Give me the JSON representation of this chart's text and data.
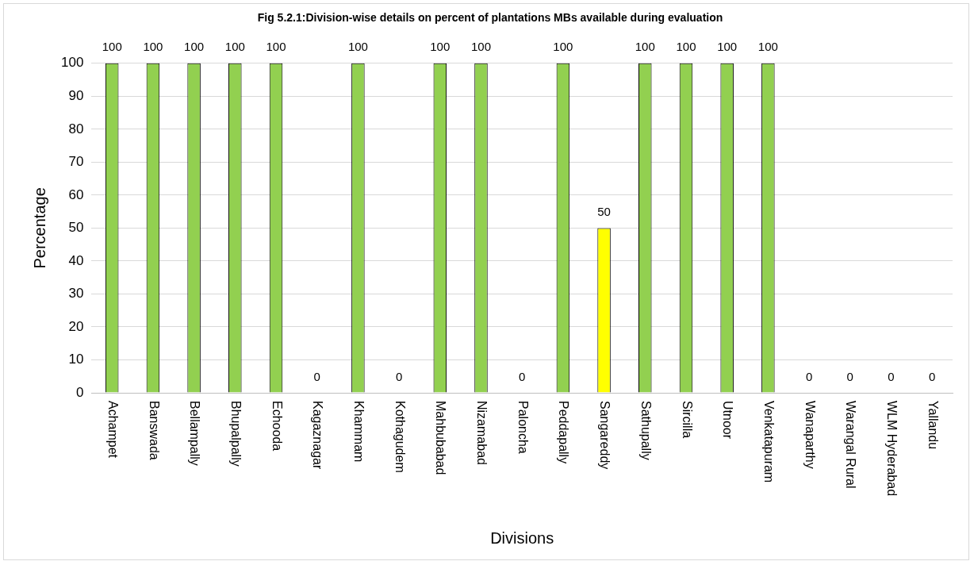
{
  "chart_data": {
    "type": "bar",
    "title": "Fig 5.2.1:Division-wise details on percent of plantations MBs available during evaluation",
    "xlabel": "Divisions",
    "ylabel": "Percentage",
    "categories": [
      "Achampet",
      "Banswada",
      "Bellampally",
      "Bhupalpally",
      "Echooda",
      "Kagaznagar",
      "Khammam",
      "Kothagudem",
      "Mahbubabad",
      "Nizamabad",
      "Paloncha",
      "Peddapally",
      "Sangareddy",
      "Sathupally",
      "Sircilla",
      "Utnoor",
      "Venkatapuram",
      "Wanaparthy",
      "Warangal Rural",
      "WLM Hyderabad",
      "Yallandu"
    ],
    "values": [
      100,
      100,
      100,
      100,
      100,
      0,
      100,
      0,
      100,
      100,
      0,
      100,
      50,
      100,
      100,
      100,
      100,
      0,
      0,
      0,
      0
    ],
    "colors": [
      "#92d050",
      "#92d050",
      "#92d050",
      "#92d050",
      "#92d050",
      "#92d050",
      "#92d050",
      "#92d050",
      "#92d050",
      "#92d050",
      "#92d050",
      "#92d050",
      "#ffff00",
      "#92d050",
      "#92d050",
      "#92d050",
      "#92d050",
      "#92d050",
      "#92d050",
      "#92d050",
      "#92d050"
    ],
    "ylim": [
      0,
      100
    ],
    "yticks": [
      0,
      10,
      20,
      30,
      40,
      50,
      60,
      70,
      80,
      90,
      100
    ],
    "grid": "y",
    "data_labels": true
  }
}
